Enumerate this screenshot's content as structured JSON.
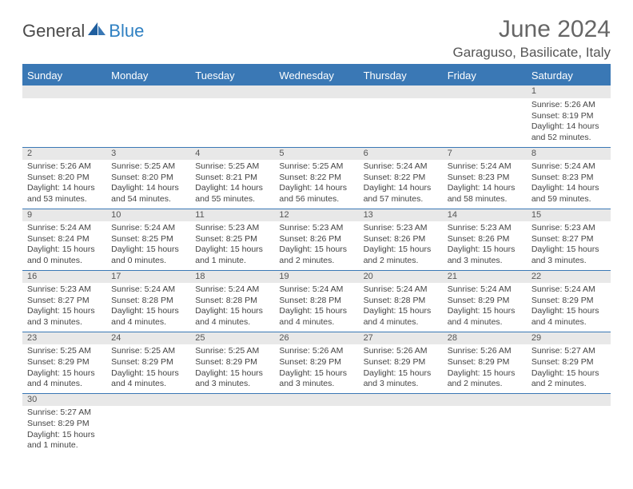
{
  "logo": {
    "part1": "General",
    "part2": "Blue"
  },
  "title": "June 2024",
  "location": "Garaguso, Basilicate, Italy",
  "colors": {
    "header_bg": "#3a78b5",
    "header_text": "#ffffff",
    "daynum_bg": "#e8e8e8",
    "rule": "#3a78b5",
    "text": "#444444",
    "title_color": "#666666"
  },
  "dayHeaders": [
    "Sunday",
    "Monday",
    "Tuesday",
    "Wednesday",
    "Thursday",
    "Friday",
    "Saturday"
  ],
  "weeks": [
    [
      null,
      null,
      null,
      null,
      null,
      null,
      {
        "n": "1",
        "sunrise": "5:26 AM",
        "sunset": "8:19 PM",
        "daylight": "14 hours and 52 minutes."
      }
    ],
    [
      {
        "n": "2",
        "sunrise": "5:26 AM",
        "sunset": "8:20 PM",
        "daylight": "14 hours and 53 minutes."
      },
      {
        "n": "3",
        "sunrise": "5:25 AM",
        "sunset": "8:20 PM",
        "daylight": "14 hours and 54 minutes."
      },
      {
        "n": "4",
        "sunrise": "5:25 AM",
        "sunset": "8:21 PM",
        "daylight": "14 hours and 55 minutes."
      },
      {
        "n": "5",
        "sunrise": "5:25 AM",
        "sunset": "8:22 PM",
        "daylight": "14 hours and 56 minutes."
      },
      {
        "n": "6",
        "sunrise": "5:24 AM",
        "sunset": "8:22 PM",
        "daylight": "14 hours and 57 minutes."
      },
      {
        "n": "7",
        "sunrise": "5:24 AM",
        "sunset": "8:23 PM",
        "daylight": "14 hours and 58 minutes."
      },
      {
        "n": "8",
        "sunrise": "5:24 AM",
        "sunset": "8:23 PM",
        "daylight": "14 hours and 59 minutes."
      }
    ],
    [
      {
        "n": "9",
        "sunrise": "5:24 AM",
        "sunset": "8:24 PM",
        "daylight": "15 hours and 0 minutes."
      },
      {
        "n": "10",
        "sunrise": "5:24 AM",
        "sunset": "8:25 PM",
        "daylight": "15 hours and 0 minutes."
      },
      {
        "n": "11",
        "sunrise": "5:23 AM",
        "sunset": "8:25 PM",
        "daylight": "15 hours and 1 minute."
      },
      {
        "n": "12",
        "sunrise": "5:23 AM",
        "sunset": "8:26 PM",
        "daylight": "15 hours and 2 minutes."
      },
      {
        "n": "13",
        "sunrise": "5:23 AM",
        "sunset": "8:26 PM",
        "daylight": "15 hours and 2 minutes."
      },
      {
        "n": "14",
        "sunrise": "5:23 AM",
        "sunset": "8:26 PM",
        "daylight": "15 hours and 3 minutes."
      },
      {
        "n": "15",
        "sunrise": "5:23 AM",
        "sunset": "8:27 PM",
        "daylight": "15 hours and 3 minutes."
      }
    ],
    [
      {
        "n": "16",
        "sunrise": "5:23 AM",
        "sunset": "8:27 PM",
        "daylight": "15 hours and 3 minutes."
      },
      {
        "n": "17",
        "sunrise": "5:24 AM",
        "sunset": "8:28 PM",
        "daylight": "15 hours and 4 minutes."
      },
      {
        "n": "18",
        "sunrise": "5:24 AM",
        "sunset": "8:28 PM",
        "daylight": "15 hours and 4 minutes."
      },
      {
        "n": "19",
        "sunrise": "5:24 AM",
        "sunset": "8:28 PM",
        "daylight": "15 hours and 4 minutes."
      },
      {
        "n": "20",
        "sunrise": "5:24 AM",
        "sunset": "8:28 PM",
        "daylight": "15 hours and 4 minutes."
      },
      {
        "n": "21",
        "sunrise": "5:24 AM",
        "sunset": "8:29 PM",
        "daylight": "15 hours and 4 minutes."
      },
      {
        "n": "22",
        "sunrise": "5:24 AM",
        "sunset": "8:29 PM",
        "daylight": "15 hours and 4 minutes."
      }
    ],
    [
      {
        "n": "23",
        "sunrise": "5:25 AM",
        "sunset": "8:29 PM",
        "daylight": "15 hours and 4 minutes."
      },
      {
        "n": "24",
        "sunrise": "5:25 AM",
        "sunset": "8:29 PM",
        "daylight": "15 hours and 4 minutes."
      },
      {
        "n": "25",
        "sunrise": "5:25 AM",
        "sunset": "8:29 PM",
        "daylight": "15 hours and 3 minutes."
      },
      {
        "n": "26",
        "sunrise": "5:26 AM",
        "sunset": "8:29 PM",
        "daylight": "15 hours and 3 minutes."
      },
      {
        "n": "27",
        "sunrise": "5:26 AM",
        "sunset": "8:29 PM",
        "daylight": "15 hours and 3 minutes."
      },
      {
        "n": "28",
        "sunrise": "5:26 AM",
        "sunset": "8:29 PM",
        "daylight": "15 hours and 2 minutes."
      },
      {
        "n": "29",
        "sunrise": "5:27 AM",
        "sunset": "8:29 PM",
        "daylight": "15 hours and 2 minutes."
      }
    ],
    [
      {
        "n": "30",
        "sunrise": "5:27 AM",
        "sunset": "8:29 PM",
        "daylight": "15 hours and 1 minute."
      },
      null,
      null,
      null,
      null,
      null,
      null
    ]
  ],
  "labels": {
    "sunrise": "Sunrise: ",
    "sunset": "Sunset: ",
    "daylight": "Daylight: "
  }
}
